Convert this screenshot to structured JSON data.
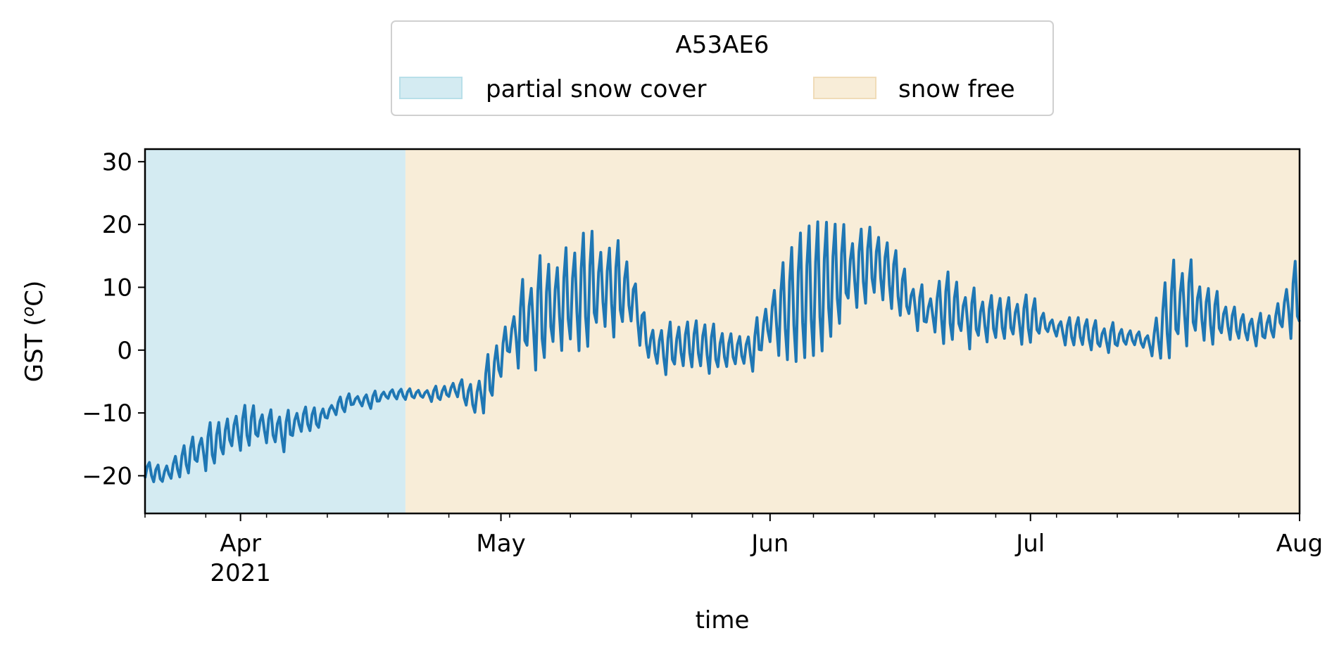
{
  "chart_data": {
    "type": "line",
    "title": "",
    "xlabel": "time",
    "ylabel": "GST (",
    "ylabel_sup": "o",
    "ylabel_unit": "C)",
    "ylim": [
      -26,
      32
    ],
    "xlim": [
      "2021-03-21",
      "2021-08-01"
    ],
    "grid": false,
    "yticks": [
      -20,
      -10,
      0,
      10,
      20,
      30
    ],
    "yticklabels": [
      "−20",
      "−10",
      "0",
      "10",
      "20",
      "30"
    ],
    "xticks_major": [
      {
        "date": "2021-04-01",
        "label": "Apr",
        "sub": "2021"
      },
      {
        "date": "2021-05-01",
        "label": "May",
        "sub": ""
      },
      {
        "date": "2021-06-01",
        "label": "Jun",
        "sub": ""
      },
      {
        "date": "2021-07-01",
        "label": "Jul",
        "sub": ""
      },
      {
        "date": "2021-08-01",
        "label": "Aug",
        "sub": ""
      }
    ],
    "xticks_minor": [
      "2021-03-21",
      "2021-03-28",
      "2021-04-04",
      "2021-04-11",
      "2021-04-18",
      "2021-04-25",
      "2021-05-02",
      "2021-05-09",
      "2021-05-16",
      "2021-05-23",
      "2021-05-30",
      "2021-06-06",
      "2021-06-13",
      "2021-06-20",
      "2021-06-27",
      "2021-07-04",
      "2021-07-11",
      "2021-07-18",
      "2021-07-25"
    ],
    "legend": {
      "title": "A53AE6",
      "placement": "top-center, above plot",
      "entries": [
        {
          "label": "partial snow cover",
          "color": "#d4ebf2",
          "edge": "#b8dfe9"
        },
        {
          "label": "snow free",
          "color": "#f8edd8",
          "edge": "#f0dcb8"
        }
      ]
    },
    "periods": [
      {
        "name": "partial snow cover",
        "start": "2021-03-21",
        "end": "2021-04-20",
        "color": "#d4ebf2"
      },
      {
        "name": "snow free",
        "start": "2021-04-20",
        "end": "2021-08-01",
        "color": "#f8edd8"
      }
    ],
    "series": [
      {
        "color": "#1f77b4",
        "x": [
          "2021-03-21",
          "2021-03-23",
          "2021-03-25",
          "2021-03-27",
          "2021-03-29",
          "2021-03-31",
          "2021-04-02",
          "2021-04-04",
          "2021-04-06",
          "2021-04-08",
          "2021-04-10",
          "2021-04-12",
          "2021-04-14",
          "2021-04-16",
          "2021-04-18",
          "2021-04-20",
          "2021-04-22",
          "2021-04-24",
          "2021-04-26",
          "2021-04-28",
          "2021-04-30",
          "2021-05-02",
          "2021-05-04",
          "2021-05-06",
          "2021-05-08",
          "2021-05-10",
          "2021-05-12",
          "2021-05-14",
          "2021-05-16",
          "2021-05-18",
          "2021-05-20",
          "2021-05-22",
          "2021-05-24",
          "2021-05-26",
          "2021-05-28",
          "2021-05-30",
          "2021-06-01",
          "2021-06-03",
          "2021-06-05",
          "2021-06-07",
          "2021-06-09",
          "2021-06-11",
          "2021-06-13",
          "2021-06-15",
          "2021-06-17",
          "2021-06-19",
          "2021-06-21",
          "2021-06-23",
          "2021-06-25",
          "2021-06-27",
          "2021-06-29",
          "2021-07-01",
          "2021-07-03",
          "2021-07-05",
          "2021-07-07",
          "2021-07-09",
          "2021-07-11",
          "2021-07-13",
          "2021-07-15",
          "2021-07-17",
          "2021-07-19",
          "2021-07-21",
          "2021-07-23",
          "2021-07-25",
          "2021-07-27",
          "2021-07-29",
          "2021-07-31"
        ],
        "mean": [
          -19,
          -20,
          -18,
          -16,
          -15,
          -13,
          -12,
          -12,
          -13,
          -11,
          -11,
          -9,
          -8,
          -8,
          -7,
          -7,
          -7,
          -7,
          -6,
          -8,
          -4,
          2,
          5,
          6,
          8,
          9,
          10,
          10,
          9,
          1,
          0,
          1,
          1,
          0,
          0,
          0,
          5,
          7,
          9,
          10,
          12,
          13,
          14,
          12,
          8,
          6,
          7,
          6,
          5,
          5,
          5,
          5,
          4,
          3,
          3,
          2,
          2,
          2,
          1,
          6,
          8,
          6,
          5,
          4,
          3,
          4,
          8
        ],
        "amp": [
          1.5,
          1.5,
          2.5,
          3,
          3,
          3,
          3,
          3,
          3,
          2,
          2,
          1,
          1,
          1,
          0.8,
          0.8,
          0.8,
          1,
          1.5,
          3,
          4,
          4,
          6,
          8,
          8,
          8,
          9,
          9,
          8,
          2,
          3,
          4,
          4,
          3,
          3,
          3,
          5,
          7,
          8,
          9,
          8,
          8,
          7,
          5,
          3,
          3,
          6,
          5,
          3,
          3,
          4,
          3,
          2,
          2,
          2,
          2,
          2,
          2,
          2,
          6,
          8,
          6,
          4,
          3,
          2,
          3,
          6
        ]
      }
    ]
  }
}
